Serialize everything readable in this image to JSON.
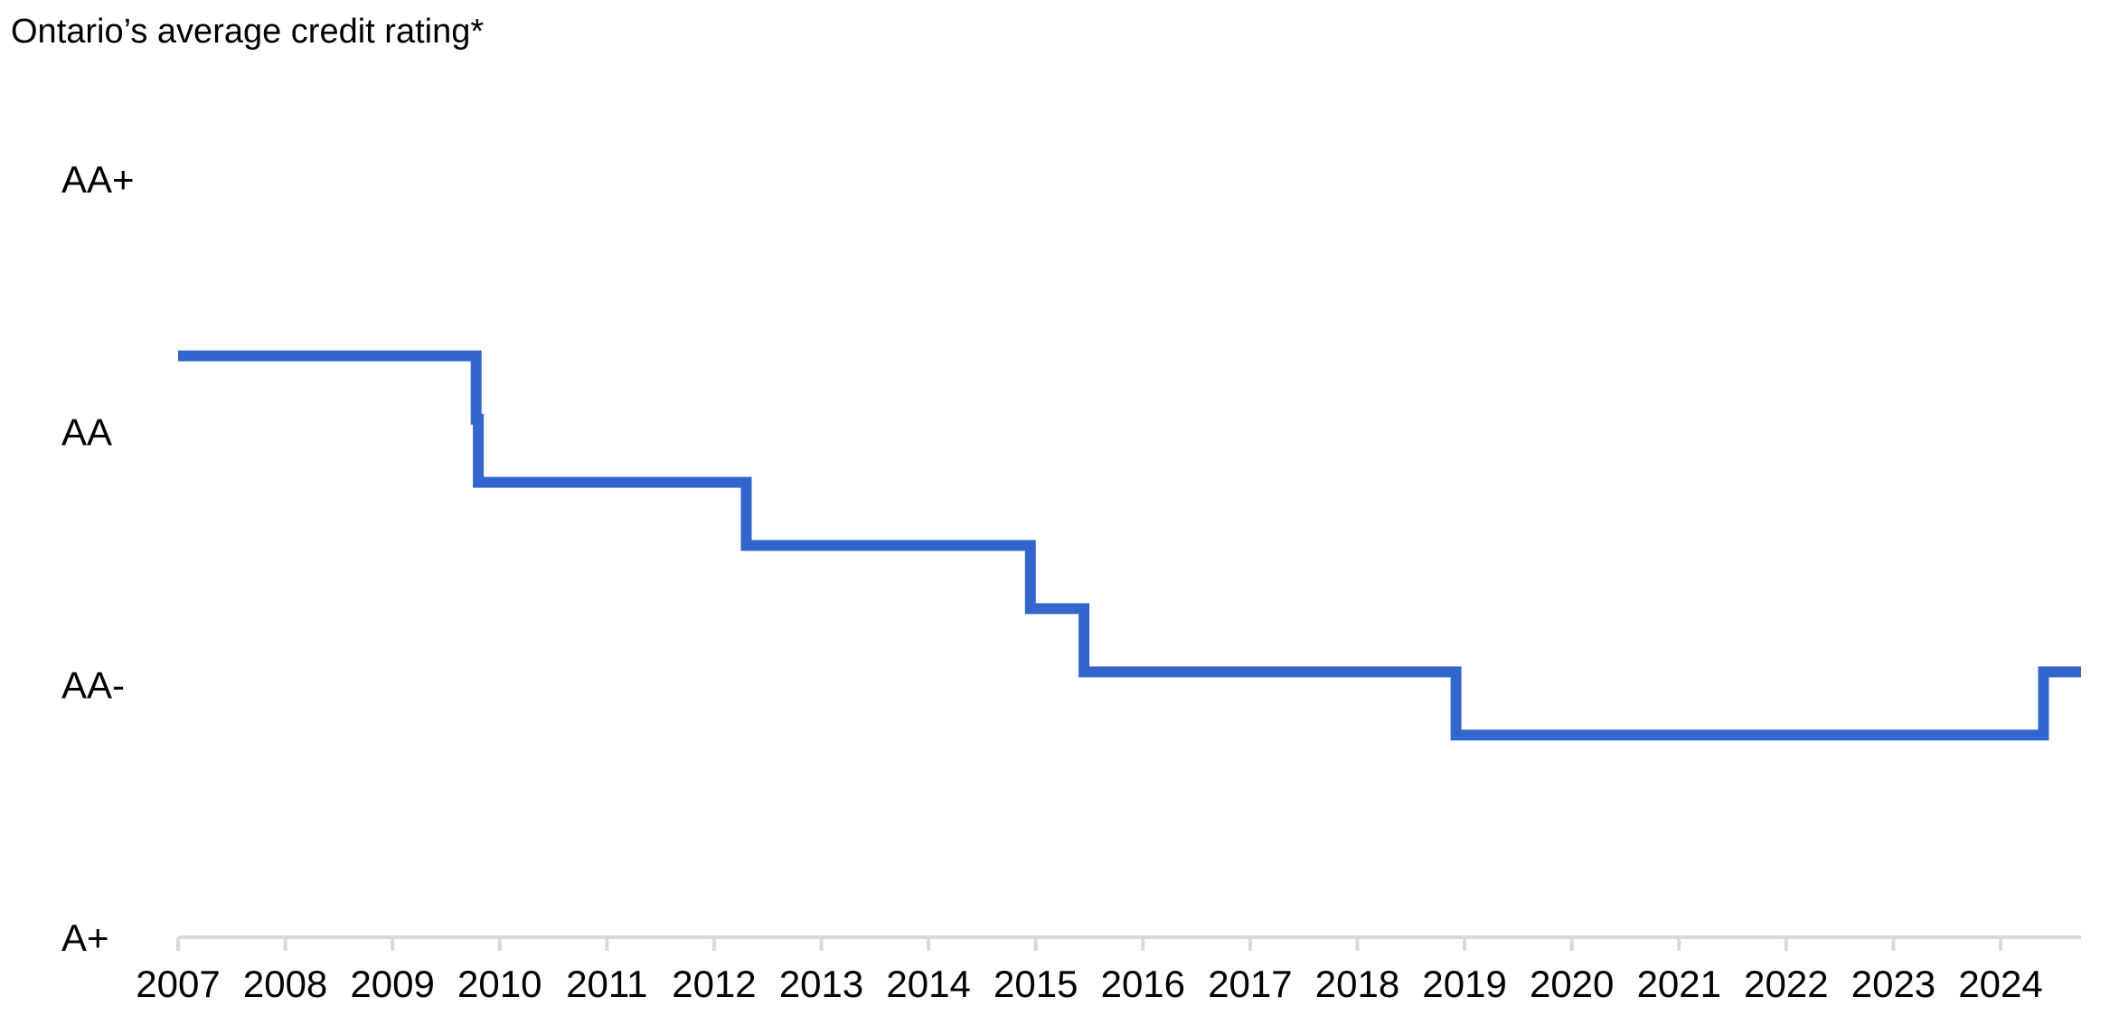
{
  "chart_data": {
    "type": "line",
    "title": "Ontario’s average credit rating*",
    "xlabel": "",
    "ylabel": "",
    "x_ticks": [
      "2007",
      "2008",
      "2009",
      "2010",
      "2011",
      "2012",
      "2013",
      "2014",
      "2015",
      "2016",
      "2017",
      "2018",
      "2019",
      "2020",
      "2021",
      "2022",
      "2023",
      "2024"
    ],
    "y_ticks": [
      "A+",
      "AA-",
      "AA",
      "AA+"
    ],
    "xlim": [
      2007,
      2024.75
    ],
    "ylim": [
      1,
      4
    ],
    "interpolation": "step",
    "grid": false,
    "legend": "none",
    "series": [
      {
        "color": "#3366CC",
        "points": [
          {
            "x": 2007.0,
            "y": 3.3
          },
          {
            "x": 2009.78,
            "y": 3.3
          },
          {
            "x": 2009.78,
            "y": 3.05
          },
          {
            "x": 2009.8,
            "y": 3.05
          },
          {
            "x": 2009.8,
            "y": 2.8
          },
          {
            "x": 2012.3,
            "y": 2.8
          },
          {
            "x": 2012.3,
            "y": 2.55
          },
          {
            "x": 2014.95,
            "y": 2.55
          },
          {
            "x": 2014.95,
            "y": 2.3
          },
          {
            "x": 2015.45,
            "y": 2.3
          },
          {
            "x": 2015.45,
            "y": 2.05
          },
          {
            "x": 2018.92,
            "y": 2.05
          },
          {
            "x": 2018.92,
            "y": 1.8
          },
          {
            "x": 2024.4,
            "y": 1.8
          },
          {
            "x": 2024.4,
            "y": 2.05
          },
          {
            "x": 2024.75,
            "y": 2.05
          }
        ]
      }
    ]
  }
}
